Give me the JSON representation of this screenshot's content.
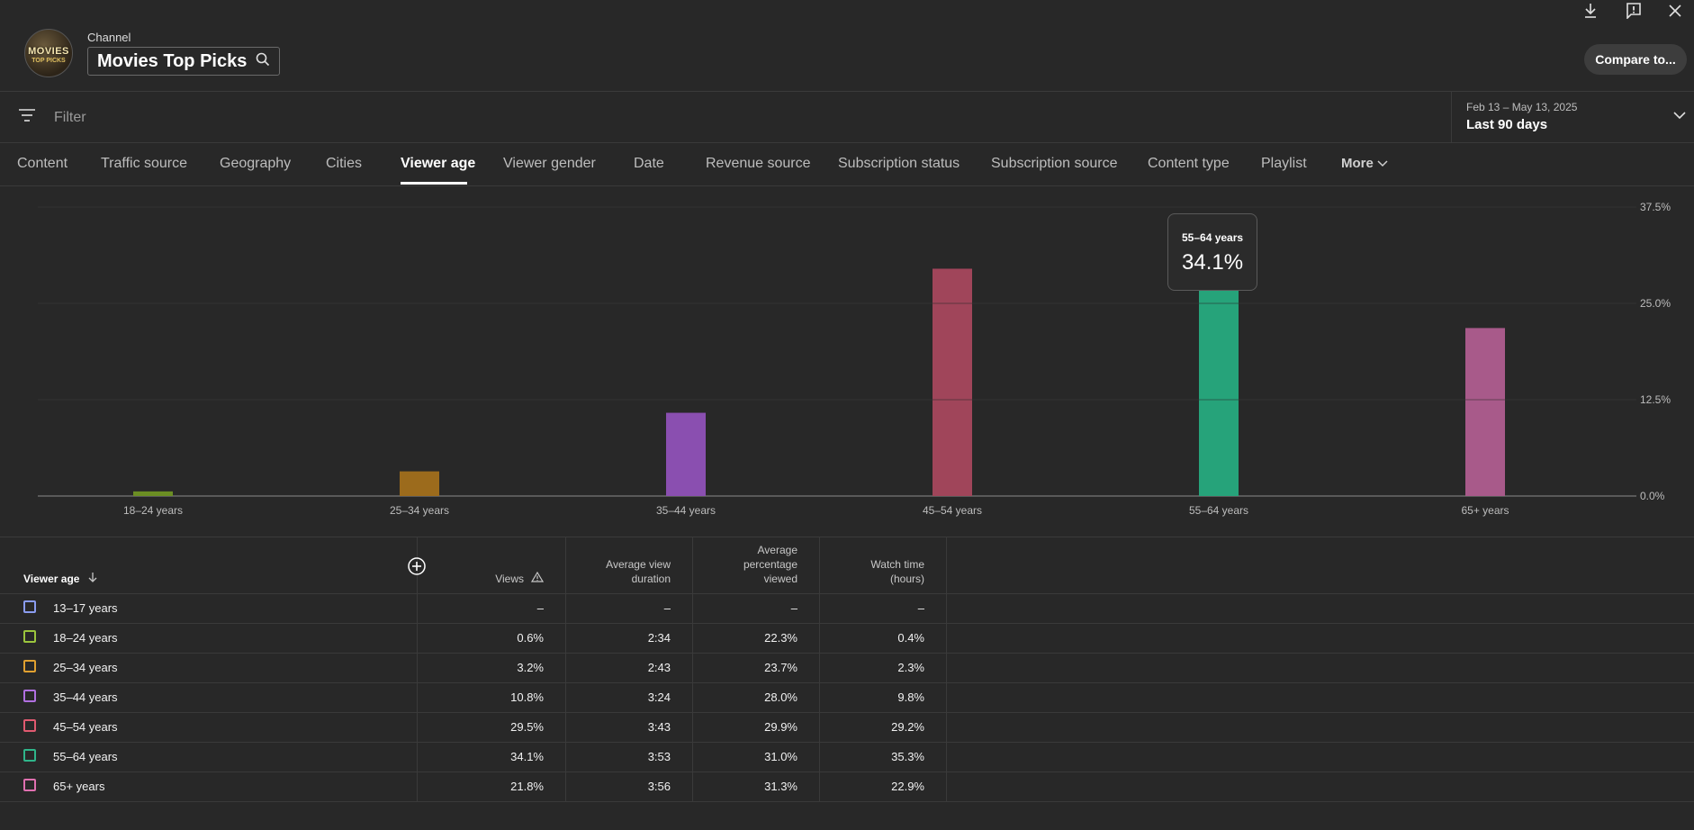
{
  "header": {
    "avatar_text": "MOVIES",
    "avatar_sub": "TOP PICKS",
    "channel_label": "Channel",
    "channel_name": "Movies Top Picks",
    "compare_label": "Compare to...",
    "icons": [
      "download-icon",
      "feedback-icon",
      "close-icon",
      "search-icon"
    ]
  },
  "filter": {
    "placeholder": "Filter",
    "date_range": "Feb 13 – May 13, 2025",
    "date_label": "Last 90 days"
  },
  "tabs": [
    {
      "label": "Content"
    },
    {
      "label": "Traffic source"
    },
    {
      "label": "Geography"
    },
    {
      "label": "Cities"
    },
    {
      "label": "Viewer age"
    },
    {
      "label": "Viewer gender"
    },
    {
      "label": "Date"
    },
    {
      "label": "Revenue source"
    },
    {
      "label": "Subscription status"
    },
    {
      "label": "Subscription source"
    },
    {
      "label": "Content type"
    },
    {
      "label": "Playlist"
    },
    {
      "label": "More"
    }
  ],
  "active_tab": "Viewer age",
  "chart_data": {
    "type": "bar",
    "categories": [
      "18–24 years",
      "25–34 years",
      "35–44 years",
      "45–54 years",
      "55–64 years",
      "65+ years"
    ],
    "values": [
      0.6,
      3.2,
      10.8,
      29.5,
      34.1,
      21.8
    ],
    "colors": [
      "#6b8e23",
      "#9c6b1c",
      "#8a4fb0",
      "#a0455a",
      "#26a37a",
      "#a85a8a"
    ],
    "y_ticks": [
      "0.0%",
      "12.5%",
      "25.0%",
      "37.5%"
    ],
    "ylim": [
      0,
      37.5
    ],
    "grid": true,
    "tooltip": {
      "label": "55–64 years",
      "value": "34.1%"
    }
  },
  "table": {
    "headers": {
      "dimension": "Viewer age",
      "views": "Views",
      "avg_view_duration": [
        "Average view",
        "duration"
      ],
      "avg_pct_viewed": [
        "Average",
        "percentage",
        "viewed"
      ],
      "watch_time": [
        "Watch time",
        "(hours)"
      ]
    },
    "rows": [
      {
        "name": "13–17 years",
        "color": "#8a9cf0",
        "views": "–",
        "duration": "–",
        "pct": "–",
        "watch": "–"
      },
      {
        "name": "18–24 years",
        "color": "#9bc53d",
        "views": "0.6%",
        "duration": "2:34",
        "pct": "22.3%",
        "watch": "0.4%"
      },
      {
        "name": "25–34 years",
        "color": "#e0a030",
        "views": "3.2%",
        "duration": "2:43",
        "pct": "23.7%",
        "watch": "2.3%"
      },
      {
        "name": "35–44 years",
        "color": "#b070e0",
        "views": "10.8%",
        "duration": "3:24",
        "pct": "28.0%",
        "watch": "9.8%"
      },
      {
        "name": "45–54 years",
        "color": "#e05a70",
        "views": "29.5%",
        "duration": "3:43",
        "pct": "29.9%",
        "watch": "29.2%"
      },
      {
        "name": "55–64 years",
        "color": "#2fb58a",
        "views": "34.1%",
        "duration": "3:53",
        "pct": "31.0%",
        "watch": "35.3%"
      },
      {
        "name": "65+ years",
        "color": "#e070b0",
        "views": "21.8%",
        "duration": "3:56",
        "pct": "31.3%",
        "watch": "22.9%"
      }
    ]
  }
}
